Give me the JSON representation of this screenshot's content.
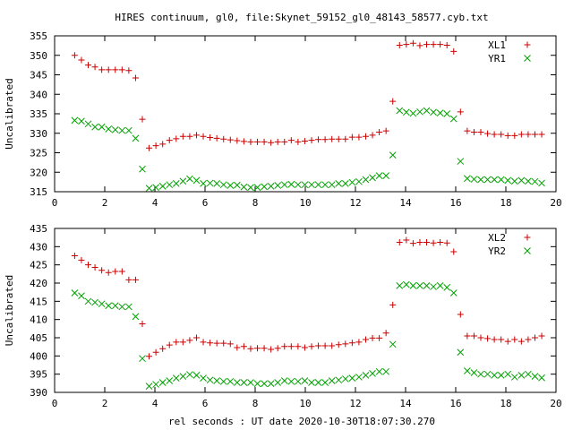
{
  "title": "HIRES continuum, gl0, file:Skynet_59152_gl0_48143_58577.cyb.txt",
  "xlabel": "rel seconds : UT date 2020-10-30T18:07:30.270",
  "chart_data": [
    {
      "type": "scatter",
      "ylabel": "Uncalibrated",
      "xlim": [
        0,
        20
      ],
      "ylim": [
        315,
        355
      ],
      "xticks": [
        0,
        2,
        4,
        6,
        8,
        10,
        12,
        14,
        16,
        18,
        20
      ],
      "yticks": [
        315,
        320,
        325,
        330,
        335,
        340,
        345,
        350,
        355
      ],
      "grid": false,
      "legend": "top-right",
      "series": [
        {
          "name": "XL1",
          "marker": "plus",
          "color": "#cc0000",
          "x": [
            0.8,
            1.07,
            1.34,
            1.61,
            1.88,
            2.15,
            2.42,
            2.69,
            2.96,
            3.23,
            3.5,
            3.77,
            4.04,
            4.31,
            4.58,
            4.85,
            5.12,
            5.39,
            5.66,
            5.93,
            6.2,
            6.47,
            6.74,
            7.01,
            7.28,
            7.55,
            7.82,
            8.09,
            8.36,
            8.63,
            8.9,
            9.17,
            9.44,
            9.71,
            9.98,
            10.25,
            10.52,
            10.79,
            11.06,
            11.33,
            11.6,
            11.87,
            12.14,
            12.41,
            12.68,
            12.95,
            13.22,
            13.49,
            13.76,
            14.03,
            14.3,
            14.57,
            14.84,
            15.11,
            15.38,
            15.65,
            15.92,
            16.19,
            16.46,
            16.73,
            17.0,
            17.27,
            17.54,
            17.81,
            18.08,
            18.35,
            18.62,
            18.89,
            19.16,
            19.43
          ],
          "y": [
            350.0,
            348.8,
            347.5,
            347.0,
            346.3,
            346.3,
            346.3,
            346.3,
            346.1,
            344.2,
            333.6,
            326.2,
            326.8,
            327.2,
            328.2,
            328.6,
            329.2,
            329.2,
            329.5,
            329.2,
            328.9,
            328.7,
            328.5,
            328.3,
            328.1,
            327.9,
            327.8,
            327.8,
            327.8,
            327.6,
            327.8,
            327.8,
            328.2,
            327.8,
            328.0,
            328.2,
            328.4,
            328.4,
            328.5,
            328.5,
            328.5,
            329.0,
            329.0,
            329.2,
            329.5,
            330.3,
            330.6,
            338.2,
            352.6,
            352.8,
            353.1,
            352.5,
            352.8,
            352.8,
            352.8,
            352.6,
            351.0,
            335.5,
            330.6,
            330.3,
            330.3,
            329.9,
            329.7,
            329.7,
            329.4,
            329.4,
            329.7,
            329.7,
            329.7,
            329.7
          ]
        },
        {
          "name": "YR1",
          "marker": "cross",
          "color": "#00a000",
          "x": [
            0.8,
            1.07,
            1.34,
            1.61,
            1.88,
            2.15,
            2.42,
            2.69,
            2.96,
            3.23,
            3.5,
            3.77,
            4.04,
            4.31,
            4.58,
            4.85,
            5.12,
            5.39,
            5.66,
            5.93,
            6.2,
            6.47,
            6.74,
            7.01,
            7.28,
            7.55,
            7.82,
            8.09,
            8.36,
            8.63,
            8.9,
            9.17,
            9.44,
            9.71,
            9.98,
            10.25,
            10.52,
            10.79,
            11.06,
            11.33,
            11.6,
            11.87,
            12.14,
            12.41,
            12.68,
            12.95,
            13.22,
            13.49,
            13.76,
            14.03,
            14.3,
            14.57,
            14.84,
            15.11,
            15.38,
            15.65,
            15.92,
            16.19,
            16.46,
            16.73,
            17.0,
            17.27,
            17.54,
            17.81,
            18.08,
            18.35,
            18.62,
            18.89,
            19.16,
            19.43
          ],
          "y": [
            333.3,
            333.1,
            332.4,
            331.6,
            331.6,
            331.1,
            330.9,
            330.7,
            330.7,
            328.7,
            320.8,
            315.9,
            316.1,
            316.4,
            316.8,
            317.1,
            317.7,
            318.3,
            317.9,
            317.1,
            317.2,
            317.1,
            316.8,
            316.6,
            316.7,
            316.2,
            316.1,
            316.1,
            316.3,
            316.4,
            316.6,
            316.8,
            316.9,
            316.8,
            316.8,
            316.8,
            316.8,
            316.8,
            316.8,
            317.1,
            317.1,
            317.4,
            317.6,
            318.1,
            318.6,
            319.1,
            319.1,
            324.4,
            335.8,
            335.4,
            335.1,
            335.5,
            335.8,
            335.4,
            335.2,
            335.0,
            333.7,
            322.8,
            318.4,
            318.2,
            318.1,
            318.1,
            318.1,
            318.1,
            317.9,
            317.7,
            317.9,
            317.7,
            317.6,
            317.2
          ]
        }
      ]
    },
    {
      "type": "scatter",
      "ylabel": "Uncalibrated",
      "xlim": [
        0,
        20
      ],
      "ylim": [
        390,
        435
      ],
      "xticks": [
        0,
        2,
        4,
        6,
        8,
        10,
        12,
        14,
        16,
        18,
        20
      ],
      "yticks": [
        390,
        395,
        400,
        405,
        410,
        415,
        420,
        425,
        430,
        435
      ],
      "grid": false,
      "legend": "top-right",
      "series": [
        {
          "name": "XL2",
          "marker": "plus",
          "color": "#cc0000",
          "x": [
            0.8,
            1.07,
            1.34,
            1.61,
            1.88,
            2.15,
            2.42,
            2.69,
            2.96,
            3.23,
            3.5,
            3.77,
            4.04,
            4.31,
            4.58,
            4.85,
            5.12,
            5.39,
            5.66,
            5.93,
            6.2,
            6.47,
            6.74,
            7.01,
            7.28,
            7.55,
            7.82,
            8.09,
            8.36,
            8.63,
            8.9,
            9.17,
            9.44,
            9.71,
            9.98,
            10.25,
            10.52,
            10.79,
            11.06,
            11.33,
            11.6,
            11.87,
            12.14,
            12.41,
            12.68,
            12.95,
            13.22,
            13.49,
            13.76,
            14.03,
            14.3,
            14.57,
            14.84,
            15.11,
            15.38,
            15.65,
            15.92,
            16.19,
            16.46,
            16.73,
            17.0,
            17.27,
            17.54,
            17.81,
            18.08,
            18.35,
            18.62,
            18.89,
            19.16,
            19.43
          ],
          "y": [
            427.5,
            426.3,
            425.0,
            424.3,
            423.5,
            422.9,
            423.2,
            423.2,
            420.9,
            420.9,
            408.8,
            399.9,
            401.0,
            402.0,
            403.0,
            403.8,
            403.8,
            404.3,
            405.0,
            403.8,
            403.6,
            403.5,
            403.5,
            403.3,
            402.3,
            402.6,
            402.0,
            402.1,
            402.1,
            401.8,
            402.1,
            402.6,
            402.6,
            402.6,
            402.3,
            402.6,
            402.8,
            402.8,
            402.8,
            403.1,
            403.3,
            403.6,
            403.8,
            404.5,
            404.9,
            404.9,
            406.3,
            414.0,
            431.2,
            431.8,
            430.9,
            431.2,
            431.2,
            431.0,
            431.2,
            431.0,
            428.6,
            411.4,
            405.5,
            405.5,
            405.0,
            404.8,
            404.5,
            404.5,
            404.0,
            404.5,
            404.0,
            404.5,
            405.0,
            405.5
          ]
        },
        {
          "name": "YR2",
          "marker": "cross",
          "color": "#00a000",
          "x": [
            0.8,
            1.07,
            1.34,
            1.61,
            1.88,
            2.15,
            2.42,
            2.69,
            2.96,
            3.23,
            3.5,
            3.77,
            4.04,
            4.31,
            4.58,
            4.85,
            5.12,
            5.39,
            5.66,
            5.93,
            6.2,
            6.47,
            6.74,
            7.01,
            7.28,
            7.55,
            7.82,
            8.09,
            8.36,
            8.63,
            8.9,
            9.17,
            9.44,
            9.71,
            9.98,
            10.25,
            10.52,
            10.79,
            11.06,
            11.33,
            11.6,
            11.87,
            12.14,
            12.41,
            12.68,
            12.95,
            13.22,
            13.49,
            13.76,
            14.03,
            14.3,
            14.57,
            14.84,
            15.11,
            15.38,
            15.65,
            15.92,
            16.19,
            16.46,
            16.73,
            17.0,
            17.27,
            17.54,
            17.81,
            18.08,
            18.35,
            18.62,
            18.89,
            19.16,
            19.43
          ],
          "y": [
            417.3,
            416.5,
            415.0,
            414.7,
            414.3,
            413.8,
            413.8,
            413.5,
            413.5,
            410.8,
            399.3,
            391.7,
            392.2,
            392.7,
            393.2,
            393.9,
            394.4,
            394.9,
            394.7,
            393.9,
            393.4,
            393.2,
            393.0,
            393.0,
            392.7,
            392.7,
            392.7,
            392.4,
            392.4,
            392.4,
            392.7,
            393.2,
            393.0,
            393.0,
            393.2,
            392.7,
            392.7,
            392.7,
            393.2,
            393.4,
            393.7,
            393.9,
            394.2,
            394.7,
            395.2,
            395.7,
            395.7,
            403.2,
            419.3,
            419.6,
            419.3,
            419.3,
            419.3,
            419.0,
            419.3,
            418.8,
            417.3,
            401.0,
            395.9,
            395.4,
            395.0,
            395.0,
            394.7,
            394.7,
            395.0,
            394.2,
            394.7,
            395.0,
            394.4,
            394.0
          ]
        }
      ]
    }
  ]
}
